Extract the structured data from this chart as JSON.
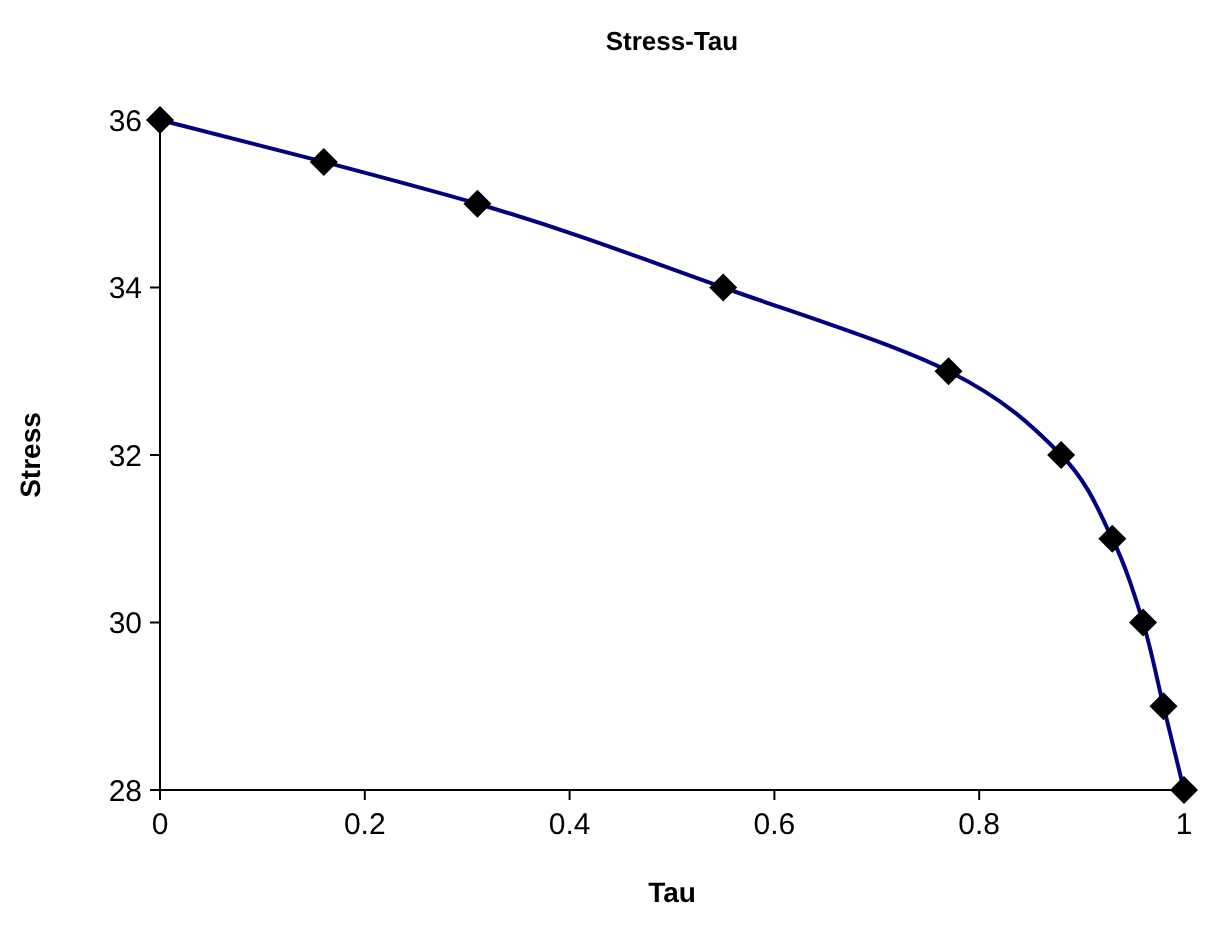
{
  "chart_data": {
    "type": "line",
    "title": "Stress-Tau",
    "xlabel": "Tau",
    "ylabel": "Stress",
    "x": [
      0,
      0.16,
      0.31,
      0.55,
      0.77,
      0.88,
      0.93,
      0.96,
      0.98,
      1
    ],
    "series": [
      {
        "color": "#000080",
        "values": [
          36,
          35.5,
          35,
          34,
          33,
          32,
          31,
          30,
          29,
          28
        ]
      }
    ],
    "xlim": [
      0,
      1
    ],
    "xticks": [
      0,
      0.2,
      0.4,
      0.6,
      0.8,
      1
    ],
    "ylim": [
      28,
      36
    ],
    "yticks": [
      28,
      30,
      32,
      34,
      36
    ],
    "marker": "diamond",
    "line_style": "solid",
    "grid": false
  }
}
